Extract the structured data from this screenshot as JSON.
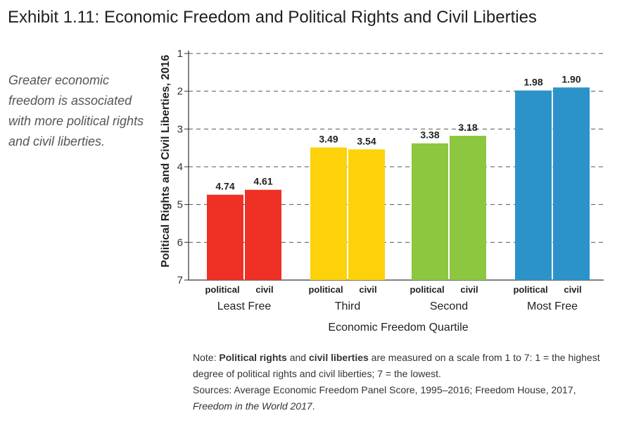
{
  "title": "Exhibit 1.11: Economic Freedom and Political Rights and Civil Liberties",
  "side_note": "Greater economic freedom is associated with more political rights and civil liberties.",
  "note": {
    "prefix": "Note: ",
    "term1": "Political rights",
    "mid1": " and ",
    "term2": "civil liberties",
    "rest": " are measured on a scale from 1 to 7: 1 = the highest degree of political rights and civil liberties; 7 = the lowest.",
    "sources_prefix": "Sources: Average Economic Freedom Panel Score, 1995–2016; Freedom House, 2017, ",
    "sources_italic": "Freedom in the World 2017",
    "sources_end": "."
  },
  "chart_data": {
    "type": "bar",
    "title": "Exhibit 1.11: Economic Freedom and Political Rights and Civil Liberties",
    "xlabel": "Economic Freedom Quartile",
    "ylabel": "Political Rights and Civil Liberties, 2016",
    "ylim": [
      1,
      7
    ],
    "y_inverted": true,
    "y_ticks": [
      1,
      2,
      3,
      4,
      5,
      6,
      7
    ],
    "grid": true,
    "categories": [
      "Least Free",
      "Third",
      "Second",
      "Most Free"
    ],
    "sub_labels": [
      "political",
      "civil"
    ],
    "groups": [
      {
        "category": "Least Free",
        "color": "#ee3124",
        "values": [
          4.74,
          4.61
        ],
        "labels": [
          "4.74",
          "4.61"
        ]
      },
      {
        "category": "Third",
        "color": "#fdd20a",
        "values": [
          3.49,
          3.54
        ],
        "labels": [
          "3.49",
          "3.54"
        ]
      },
      {
        "category": "Second",
        "color": "#8dc63f",
        "values": [
          3.38,
          3.18
        ],
        "labels": [
          "3.38",
          "3.18"
        ]
      },
      {
        "category": "Most Free",
        "color": "#2b93c9",
        "values": [
          1.98,
          1.9
        ],
        "labels": [
          "1.98",
          "1.90"
        ]
      }
    ]
  }
}
